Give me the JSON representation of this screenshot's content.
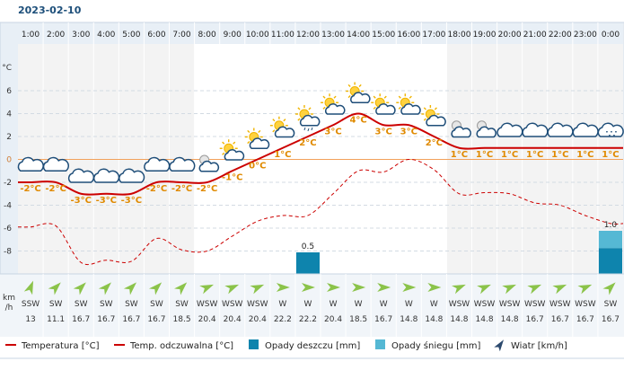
{
  "date": "2023-02-10",
  "y_unit": "°C",
  "wind_unit_lines": [
    "km",
    "/h"
  ],
  "legend": [
    {
      "label": "Temperatura [°C]",
      "kind": "line",
      "color": "#cc0000"
    },
    {
      "label": "Temp. odczuwalna [°C]",
      "kind": "line",
      "color": "#cc0000"
    },
    {
      "label": "Opady deszczu [mm]",
      "kind": "box",
      "color": "#0e84ad"
    },
    {
      "label": "Opady śniegu [mm]",
      "kind": "box",
      "color": "#55b8d4"
    },
    {
      "label": "Wiatr [km/h]",
      "kind": "arrow",
      "color": "#2c4a6e"
    }
  ],
  "weather_icons": [
    "cloudy-icon",
    "cloudy-icon",
    "cloudy-icon",
    "cloudy-icon",
    "cloudy-icon",
    "cloudy-icon",
    "cloudy-icon",
    "fog-cloud-icon",
    "partly-sunny-icon",
    "partly-sunny-icon",
    "partly-sunny-icon",
    "partly-sunny-rain-icon",
    "partly-sunny-icon",
    "partly-sunny-icon",
    "partly-sunny-icon",
    "partly-sunny-icon",
    "partly-sunny-icon",
    "fog-cloud-icon",
    "fog-cloud-icon",
    "cloudy-icon",
    "cloudy-icon",
    "cloudy-icon",
    "cloudy-icon",
    "cloudy-snow-icon"
  ],
  "colors": {
    "header_bg": "#e8eff6",
    "chart_bg_day": "#ffffff",
    "chart_bg_night": "#f3f3f3",
    "zero_line": "#f2a15b",
    "temp_label": "#e08a00",
    "wind_bg": "#f1f5f9",
    "arrow": "#8bc34a"
  },
  "chart_data": {
    "type": "line",
    "x": [
      "1:00",
      "2:00",
      "3:00",
      "4:00",
      "5:00",
      "6:00",
      "7:00",
      "8:00",
      "9:00",
      "10:00",
      "11:00",
      "12:00",
      "13:00",
      "14:00",
      "15:00",
      "16:00",
      "17:00",
      "18:00",
      "19:00",
      "20:00",
      "21:00",
      "22:00",
      "23:00",
      "0:00"
    ],
    "ylim": [
      -10,
      10
    ],
    "yticks": [
      6,
      4,
      2,
      0,
      -2,
      -4,
      -6,
      -8
    ],
    "grid": true,
    "legend_position": "bottom",
    "series": [
      {
        "name": "Temperatura [°C]",
        "values": [
          -2,
          -2,
          -3,
          -3,
          -3,
          -2,
          -2,
          -2,
          -1,
          0,
          1,
          2,
          3,
          4,
          3,
          3,
          2,
          1,
          1,
          1,
          1,
          1,
          1,
          1
        ]
      },
      {
        "name": "Temp. odczuwalna [°C]",
        "values": [
          -5.9,
          -5.8,
          -9.0,
          -8.8,
          -8.9,
          -6.9,
          -7.9,
          -8.0,
          -6.7,
          -5.4,
          -4.9,
          -4.9,
          -3.0,
          -1.0,
          -1.1,
          0.0,
          -0.9,
          -3.0,
          -2.9,
          -3.0,
          -3.8,
          -4.0,
          -4.9,
          -5.6
        ]
      },
      {
        "name": "Opady deszczu [mm]",
        "values": [
          0,
          0,
          0,
          0,
          0,
          0,
          0,
          0,
          0,
          0,
          0,
          0.5,
          0,
          0,
          0,
          0,
          0,
          0,
          0,
          0,
          0,
          0,
          0,
          0.6
        ]
      },
      {
        "name": "Opady śniegu [mm]",
        "values": [
          0,
          0,
          0,
          0,
          0,
          0,
          0,
          0,
          0,
          0,
          0,
          0,
          0,
          0,
          0,
          0,
          0,
          0,
          0,
          0,
          0,
          0,
          0,
          0.4
        ]
      }
    ],
    "temp_labels": [
      "-2°C",
      "-2°C",
      "-3°C",
      "-3°C",
      "-3°C",
      "-2°C",
      "-2°C",
      "-2°C",
      "-1°C",
      "0°C",
      "1°C",
      "2°C",
      "3°C",
      "4°C",
      "3°C",
      "3°C",
      "2°C",
      "1°C",
      "1°C",
      "1°C",
      "1°C",
      "1°C",
      "1°C",
      "1°C"
    ],
    "precip_labels": [
      {
        "hour": "12:00",
        "text": "0.5"
      },
      {
        "hour": "0:00",
        "text": "1.0"
      }
    ],
    "wind": {
      "directions": [
        "SSW",
        "SW",
        "SW",
        "SW",
        "SW",
        "SW",
        "SW",
        "WSW",
        "WSW",
        "WSW",
        "W",
        "W",
        "W",
        "W",
        "W",
        "W",
        "W",
        "WSW",
        "WSW",
        "WSW",
        "WSW",
        "WSW",
        "WSW",
        "SW"
      ],
      "speeds": [
        "13",
        "11.1",
        "16.7",
        "16.7",
        "16.7",
        "16.7",
        "18.5",
        "20.4",
        "20.4",
        "20.4",
        "22.2",
        "22.2",
        "20.4",
        "18.5",
        "16.7",
        "14.8",
        "14.8",
        "14.8",
        "14.8",
        "14.8",
        "16.7",
        "16.7",
        "16.7",
        "16.7"
      ],
      "bearings_deg": [
        202,
        225,
        225,
        225,
        225,
        225,
        225,
        247,
        247,
        247,
        270,
        270,
        270,
        270,
        270,
        270,
        270,
        247,
        247,
        247,
        247,
        247,
        247,
        225
      ]
    }
  }
}
